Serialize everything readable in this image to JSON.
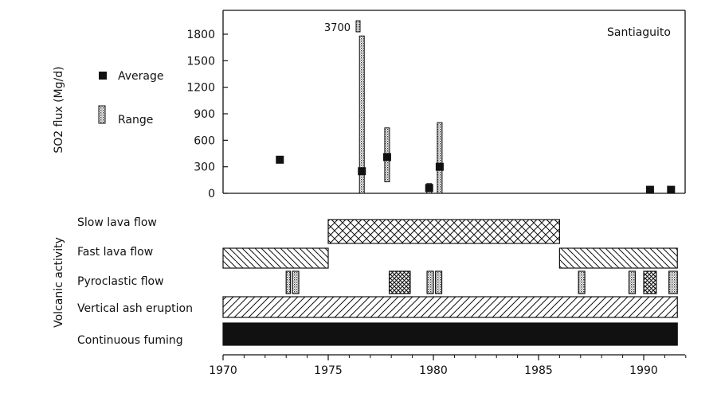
{
  "chart_data": {
    "type": "bar",
    "title": "Santiaguito",
    "ylabel": "SO2 flux (Mg/d)",
    "ylabel_lower": "Volcanic activity",
    "xlim": [
      1970,
      1992
    ],
    "ylim": [
      0,
      2000
    ],
    "y_ticks": [
      0,
      300,
      600,
      900,
      1200,
      1500,
      1800
    ],
    "x_ticks": [
      1970,
      1975,
      1980,
      1985,
      1990
    ],
    "legend": [
      {
        "key": "average",
        "label": "Average",
        "marker": "filled-square"
      },
      {
        "key": "range",
        "label": "Range",
        "marker": "stippled-bar"
      }
    ],
    "annotation": {
      "text": "3700",
      "x": 1976.6
    },
    "average": [
      {
        "x": 1972.7,
        "y": 380
      },
      {
        "x": 1976.6,
        "y": 250
      },
      {
        "x": 1977.8,
        "y": 410
      },
      {
        "x": 1979.8,
        "y": 60
      },
      {
        "x": 1980.3,
        "y": 300
      },
      {
        "x": 1990.3,
        "y": 40
      },
      {
        "x": 1991.3,
        "y": 40
      }
    ],
    "range": [
      {
        "x": 1976.6,
        "low": 0,
        "high": 1780
      },
      {
        "x": 1977.8,
        "low": 130,
        "high": 740
      },
      {
        "x": 1979.8,
        "low": 0,
        "high": 110
      },
      {
        "x": 1980.3,
        "low": 0,
        "high": 800
      }
    ],
    "activity": [
      {
        "label": "Slow lava flow",
        "pattern": "crosshatch",
        "intervals": [
          [
            1975.0,
            1986.0
          ]
        ]
      },
      {
        "label": "Fast lava flow",
        "pattern": "diag-back",
        "intervals": [
          [
            1970.0,
            1975.0
          ],
          [
            1986.0,
            1991.6
          ]
        ]
      },
      {
        "label": "Pyroclastic flow",
        "pattern": "mixed",
        "intervals": [
          [
            1973.0,
            1973.2,
            "dots"
          ],
          [
            1973.3,
            1973.6,
            "dots"
          ],
          [
            1977.9,
            1978.9,
            "cross"
          ],
          [
            1979.7,
            1980.0,
            "dots"
          ],
          [
            1980.1,
            1980.4,
            "dots"
          ],
          [
            1986.9,
            1987.2,
            "dots"
          ],
          [
            1989.3,
            1989.6,
            "dots"
          ],
          [
            1990.0,
            1990.6,
            "cross"
          ],
          [
            1991.2,
            1991.6,
            "dots"
          ]
        ]
      },
      {
        "label": "Vertical ash eruption",
        "pattern": "diag-fwd",
        "intervals": [
          [
            1970.0,
            1991.6
          ]
        ]
      },
      {
        "label": "Continuous fuming",
        "pattern": "solid",
        "intervals": [
          [
            1970.0,
            1991.6
          ]
        ]
      }
    ]
  }
}
